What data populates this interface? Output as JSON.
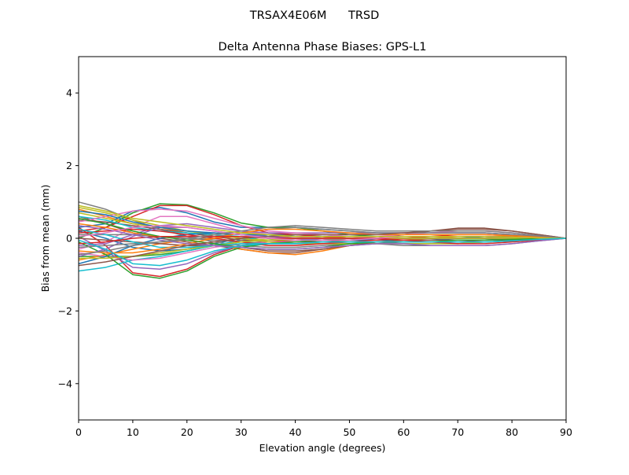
{
  "suptitle": "TRSAX4E06M      TRSD",
  "chart_data": {
    "type": "line",
    "title": "Delta Antenna Phase Biases: GPS-L1",
    "xlabel": "Elevation angle (degrees)",
    "ylabel": "Bias from mean (mm)",
    "xlim": [
      0,
      90
    ],
    "ylim": [
      -5,
      5
    ],
    "xticks": [
      0,
      10,
      20,
      30,
      40,
      50,
      60,
      70,
      80,
      90
    ],
    "yticks": [
      -4,
      -2,
      0,
      2,
      4
    ],
    "ytick_labels": [
      "−4",
      "−2",
      "0",
      "2",
      "4"
    ],
    "x": [
      0,
      5,
      10,
      15,
      20,
      25,
      30,
      35,
      40,
      45,
      50,
      55,
      60,
      65,
      70,
      75,
      80,
      85,
      90
    ],
    "series": [
      {
        "color": "#1f77b4",
        "values": [
          0.2,
          0.0,
          -0.25,
          -0.35,
          -0.3,
          -0.15,
          0.0,
          0.1,
          0.1,
          0.05,
          0.0,
          -0.05,
          -0.05,
          -0.05,
          0.0,
          0.05,
          0.05,
          0.02,
          0.0
        ]
      },
      {
        "color": "#ff7f0e",
        "values": [
          0.8,
          0.6,
          0.4,
          0.3,
          0.15,
          0.05,
          -0.05,
          -0.1,
          -0.1,
          -0.05,
          0.0,
          0.05,
          0.05,
          0.05,
          0.05,
          0.05,
          0.04,
          0.02,
          0.0
        ]
      },
      {
        "color": "#2ca02c",
        "values": [
          -0.5,
          -0.5,
          -0.5,
          -0.45,
          -0.35,
          -0.2,
          -0.1,
          -0.05,
          0.0,
          0.05,
          0.05,
          0.05,
          0.05,
          0.05,
          0.05,
          0.05,
          0.04,
          0.02,
          0.0
        ]
      },
      {
        "color": "#d62728",
        "values": [
          0.3,
          -0.2,
          -0.95,
          -1.05,
          -0.85,
          -0.45,
          -0.2,
          -0.1,
          -0.05,
          0.0,
          0.0,
          0.0,
          0.0,
          0.0,
          0.0,
          0.0,
          0.0,
          0.0,
          0.0
        ]
      },
      {
        "color": "#9467bd",
        "values": [
          0.05,
          -0.35,
          -0.8,
          -0.85,
          -0.7,
          -0.4,
          -0.2,
          -0.15,
          -0.1,
          -0.05,
          0.0,
          0.0,
          0.0,
          0.0,
          0.0,
          0.0,
          0.0,
          0.0,
          0.0
        ]
      },
      {
        "color": "#8c564b",
        "values": [
          0.6,
          0.4,
          0.15,
          0.0,
          -0.1,
          -0.2,
          -0.3,
          -0.4,
          -0.4,
          -0.3,
          -0.2,
          -0.15,
          -0.1,
          -0.1,
          -0.1,
          -0.05,
          -0.05,
          -0.02,
          0.0
        ]
      },
      {
        "color": "#e377c2",
        "values": [
          -0.3,
          -0.1,
          0.3,
          0.6,
          0.6,
          0.4,
          0.2,
          0.1,
          0.05,
          0.0,
          0.0,
          0.0,
          0.0,
          0.0,
          0.0,
          0.0,
          0.0,
          0.0,
          0.0
        ]
      },
      {
        "color": "#7f7f7f",
        "values": [
          1.0,
          0.8,
          0.5,
          0.25,
          0.05,
          -0.1,
          -0.2,
          -0.25,
          -0.25,
          -0.2,
          -0.15,
          -0.15,
          -0.15,
          -0.15,
          -0.15,
          -0.1,
          -0.07,
          -0.03,
          0.0
        ]
      },
      {
        "color": "#bcbd22",
        "values": [
          0.85,
          0.7,
          0.5,
          0.35,
          0.2,
          0.1,
          0.0,
          -0.05,
          -0.05,
          -0.05,
          -0.05,
          -0.05,
          -0.05,
          -0.05,
          -0.05,
          -0.05,
          -0.03,
          -0.01,
          0.0
        ]
      },
      {
        "color": "#17becf",
        "values": [
          -0.9,
          -0.8,
          -0.6,
          -0.5,
          -0.35,
          -0.2,
          -0.05,
          0.05,
          0.1,
          0.1,
          0.05,
          0.05,
          0.05,
          0.05,
          0.05,
          0.05,
          0.03,
          0.01,
          0.0
        ]
      },
      {
        "color": "#1f77b4",
        "values": [
          0.3,
          0.4,
          0.75,
          0.85,
          0.7,
          0.45,
          0.3,
          0.3,
          0.3,
          0.25,
          0.2,
          0.15,
          0.15,
          0.15,
          0.15,
          0.15,
          0.1,
          0.05,
          0.0
        ]
      },
      {
        "color": "#ff7f0e",
        "values": [
          -0.6,
          -0.45,
          -0.3,
          -0.15,
          -0.05,
          0.0,
          0.05,
          0.05,
          0.05,
          0.05,
          0.0,
          0.0,
          0.0,
          0.0,
          0.0,
          0.0,
          0.0,
          0.0,
          0.0
        ]
      },
      {
        "color": "#2ca02c",
        "values": [
          0.0,
          0.3,
          0.7,
          0.95,
          0.92,
          0.7,
          0.42,
          0.3,
          0.3,
          0.2,
          0.1,
          0.05,
          0.05,
          0.05,
          0.05,
          0.05,
          0.03,
          0.01,
          0.0
        ]
      },
      {
        "color": "#d62728",
        "values": [
          0.2,
          0.3,
          0.6,
          0.9,
          0.9,
          0.65,
          0.35,
          0.15,
          0.1,
          0.05,
          0.0,
          0.0,
          0.0,
          0.0,
          0.0,
          0.0,
          0.0,
          0.0,
          0.0
        ]
      },
      {
        "color": "#9467bd",
        "values": [
          -0.2,
          -0.15,
          0.1,
          0.35,
          0.4,
          0.3,
          0.2,
          0.15,
          0.15,
          0.15,
          0.15,
          0.15,
          0.15,
          0.15,
          0.15,
          0.15,
          0.1,
          0.05,
          0.0
        ]
      },
      {
        "color": "#8c564b",
        "values": [
          0.5,
          0.45,
          0.35,
          0.25,
          0.15,
          0.05,
          -0.05,
          -0.1,
          -0.1,
          -0.1,
          -0.05,
          0.0,
          0.1,
          0.2,
          0.28,
          0.28,
          0.2,
          0.1,
          0.0
        ]
      },
      {
        "color": "#e377c2",
        "values": [
          -0.4,
          -0.5,
          -0.6,
          -0.55,
          -0.4,
          -0.25,
          -0.15,
          -0.1,
          -0.1,
          -0.05,
          0.0,
          0.05,
          0.1,
          0.15,
          0.2,
          0.2,
          0.15,
          0.07,
          0.0
        ]
      },
      {
        "color": "#7f7f7f",
        "values": [
          0.1,
          0.1,
          0.1,
          0.05,
          0.0,
          -0.05,
          -0.1,
          -0.15,
          -0.15,
          -0.15,
          -0.15,
          -0.15,
          -0.2,
          -0.2,
          -0.2,
          -0.2,
          -0.15,
          -0.07,
          0.0
        ]
      },
      {
        "color": "#bcbd22",
        "values": [
          0.7,
          0.55,
          0.4,
          0.3,
          0.2,
          0.1,
          0.0,
          -0.1,
          -0.15,
          -0.15,
          -0.15,
          -0.15,
          -0.15,
          -0.15,
          -0.15,
          -0.1,
          -0.07,
          -0.03,
          0.0
        ]
      },
      {
        "color": "#17becf",
        "values": [
          0.6,
          0.5,
          0.3,
          0.2,
          0.15,
          0.1,
          0.05,
          0.0,
          -0.05,
          -0.05,
          -0.05,
          -0.05,
          -0.05,
          -0.05,
          -0.05,
          -0.05,
          -0.03,
          -0.01,
          0.0
        ]
      },
      {
        "color": "#1f77b4",
        "values": [
          -0.7,
          -0.5,
          -0.2,
          0.0,
          0.1,
          0.15,
          0.1,
          0.05,
          0.0,
          -0.05,
          -0.05,
          -0.05,
          -0.05,
          -0.05,
          -0.05,
          -0.05,
          -0.03,
          -0.01,
          0.0
        ]
      },
      {
        "color": "#ff7f0e",
        "values": [
          0.4,
          0.3,
          0.15,
          0.05,
          -0.05,
          -0.15,
          -0.3,
          -0.4,
          -0.45,
          -0.35,
          -0.2,
          -0.1,
          -0.05,
          0.0,
          0.05,
          0.05,
          0.04,
          0.02,
          0.0
        ]
      },
      {
        "color": "#2ca02c",
        "values": [
          -0.1,
          -0.45,
          -1.0,
          -1.1,
          -0.9,
          -0.5,
          -0.25,
          -0.15,
          -0.1,
          -0.05,
          0.0,
          0.0,
          0.0,
          0.0,
          0.0,
          0.0,
          0.0,
          0.0,
          0.0
        ]
      },
      {
        "color": "#d62728",
        "values": [
          0.15,
          0.2,
          0.25,
          0.2,
          0.1,
          0.0,
          -0.1,
          -0.2,
          -0.2,
          -0.15,
          -0.1,
          -0.05,
          0.0,
          0.05,
          0.1,
          0.1,
          0.07,
          0.03,
          0.0
        ]
      },
      {
        "color": "#9467bd",
        "values": [
          -0.5,
          -0.3,
          0.05,
          0.3,
          0.3,
          0.2,
          0.1,
          0.05,
          0.0,
          0.0,
          0.0,
          0.0,
          0.0,
          0.0,
          0.0,
          0.0,
          0.0,
          0.0,
          0.0
        ]
      },
      {
        "color": "#8c564b",
        "values": [
          0.0,
          -0.05,
          -0.1,
          -0.15,
          -0.2,
          -0.2,
          -0.25,
          -0.35,
          -0.35,
          -0.3,
          -0.2,
          -0.1,
          -0.05,
          -0.05,
          -0.05,
          -0.05,
          -0.03,
          -0.01,
          0.0
        ]
      },
      {
        "color": "#e377c2",
        "values": [
          0.45,
          0.6,
          0.75,
          0.8,
          0.75,
          0.55,
          0.35,
          0.2,
          0.15,
          0.1,
          0.05,
          0.05,
          0.05,
          0.05,
          0.05,
          0.05,
          0.03,
          0.01,
          0.0
        ]
      },
      {
        "color": "#7f7f7f",
        "values": [
          -0.25,
          -0.2,
          -0.15,
          -0.1,
          -0.05,
          0.05,
          0.15,
          0.25,
          0.3,
          0.25,
          0.2,
          0.15,
          0.15,
          0.15,
          0.15,
          0.15,
          0.1,
          0.05,
          0.0
        ]
      },
      {
        "color": "#bcbd22",
        "values": [
          -0.55,
          -0.55,
          -0.5,
          -0.4,
          -0.3,
          -0.2,
          -0.1,
          -0.05,
          0.0,
          0.0,
          0.0,
          0.0,
          0.0,
          0.0,
          0.0,
          0.0,
          0.0,
          0.0,
          0.0
        ]
      },
      {
        "color": "#17becf",
        "values": [
          0.25,
          0.1,
          -0.1,
          -0.25,
          -0.25,
          -0.2,
          -0.15,
          -0.15,
          -0.15,
          -0.1,
          -0.1,
          -0.1,
          -0.1,
          -0.1,
          -0.1,
          -0.1,
          -0.07,
          -0.03,
          0.0
        ]
      },
      {
        "color": "#1f77b4",
        "values": [
          0.75,
          0.65,
          0.45,
          0.3,
          0.2,
          0.15,
          0.1,
          0.1,
          0.05,
          0.05,
          0.05,
          0.05,
          0.05,
          0.05,
          0.05,
          0.05,
          0.03,
          0.01,
          0.0
        ]
      },
      {
        "color": "#ff7f0e",
        "values": [
          -0.35,
          -0.4,
          -0.4,
          -0.3,
          -0.15,
          0.0,
          0.15,
          0.25,
          0.25,
          0.2,
          0.15,
          0.1,
          0.1,
          0.1,
          0.1,
          0.1,
          0.07,
          0.03,
          0.0
        ]
      },
      {
        "color": "#2ca02c",
        "values": [
          0.55,
          0.4,
          0.2,
          0.05,
          -0.05,
          -0.15,
          -0.25,
          -0.3,
          -0.3,
          -0.25,
          -0.15,
          -0.1,
          -0.1,
          -0.1,
          -0.05,
          -0.05,
          -0.03,
          -0.01,
          0.0
        ]
      },
      {
        "color": "#d62728",
        "values": [
          -0.15,
          -0.1,
          0.0,
          0.05,
          0.05,
          0.05,
          0.05,
          0.0,
          0.0,
          0.0,
          0.0,
          0.0,
          -0.05,
          -0.1,
          -0.15,
          -0.15,
          -0.1,
          -0.05,
          0.0
        ]
      },
      {
        "color": "#9467bd",
        "values": [
          0.35,
          0.25,
          0.1,
          -0.05,
          -0.15,
          -0.2,
          -0.25,
          -0.3,
          -0.3,
          -0.25,
          -0.2,
          -0.15,
          -0.15,
          -0.2,
          -0.2,
          -0.2,
          -0.15,
          -0.07,
          0.0
        ]
      },
      {
        "color": "#8c564b",
        "values": [
          -0.75,
          -0.65,
          -0.5,
          -0.35,
          -0.2,
          -0.1,
          0.0,
          0.05,
          0.1,
          0.1,
          0.1,
          0.1,
          0.15,
          0.2,
          0.25,
          0.25,
          0.2,
          0.1,
          0.0
        ]
      },
      {
        "color": "#e377c2",
        "values": [
          0.05,
          0.15,
          0.3,
          0.35,
          0.3,
          0.2,
          0.1,
          0.0,
          -0.05,
          -0.05,
          -0.05,
          0.0,
          0.05,
          0.05,
          0.05,
          0.05,
          0.03,
          0.01,
          0.0
        ]
      },
      {
        "color": "#7f7f7f",
        "values": [
          -0.45,
          -0.35,
          -0.2,
          -0.1,
          0.0,
          0.1,
          0.2,
          0.3,
          0.35,
          0.3,
          0.25,
          0.2,
          0.2,
          0.2,
          0.2,
          0.2,
          0.15,
          0.07,
          0.0
        ]
      },
      {
        "color": "#bcbd22",
        "values": [
          0.9,
          0.75,
          0.55,
          0.45,
          0.35,
          0.25,
          0.15,
          0.1,
          0.05,
          0.05,
          0.05,
          0.05,
          0.05,
          0.05,
          0.05,
          0.05,
          0.03,
          0.01,
          0.0
        ]
      },
      {
        "color": "#17becf",
        "values": [
          -0.05,
          -0.3,
          -0.7,
          -0.75,
          -0.6,
          -0.35,
          -0.2,
          -0.15,
          -0.15,
          -0.1,
          -0.1,
          -0.1,
          -0.1,
          -0.1,
          -0.1,
          -0.1,
          -0.07,
          -0.03,
          0.0
        ]
      }
    ]
  }
}
